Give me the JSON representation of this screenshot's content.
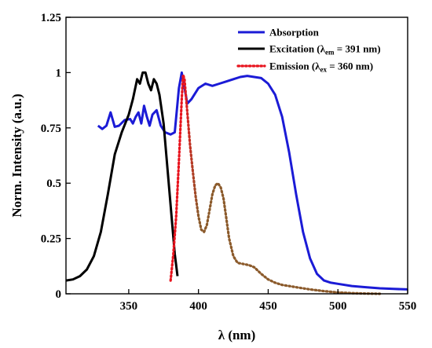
{
  "chart_data": {
    "type": "line",
    "xlabel": "λ (nm)",
    "ylabel": "Norm. Intensity (a.u.)",
    "xlim": [
      305,
      550
    ],
    "ylim": [
      0,
      1.25
    ],
    "x_ticks": [
      350,
      400,
      450,
      500,
      550
    ],
    "y_ticks": [
      0,
      0.25,
      0.5,
      0.75,
      1,
      1.25
    ],
    "x_tick_labels": [
      "350",
      "400",
      "450",
      "500",
      "550"
    ],
    "y_tick_labels": [
      "0",
      "0.25",
      "0.5",
      "0.75",
      "1",
      "1.25"
    ],
    "legend_position": "top-right",
    "grid": false,
    "series": [
      {
        "name": "Absorption",
        "name_base": "Absorption",
        "color": "#1b1bd6",
        "style": "solid",
        "points": [
          [
            328,
            0.76
          ],
          [
            331,
            0.745
          ],
          [
            334,
            0.76
          ],
          [
            337,
            0.82
          ],
          [
            340,
            0.755
          ],
          [
            343,
            0.76
          ],
          [
            347,
            0.785
          ],
          [
            351,
            0.79
          ],
          [
            353,
            0.77
          ],
          [
            355,
            0.8
          ],
          [
            357,
            0.82
          ],
          [
            359,
            0.77
          ],
          [
            361,
            0.85
          ],
          [
            363,
            0.8
          ],
          [
            365,
            0.76
          ],
          [
            367,
            0.81
          ],
          [
            370,
            0.83
          ],
          [
            373,
            0.76
          ],
          [
            376,
            0.73
          ],
          [
            380,
            0.72
          ],
          [
            383,
            0.73
          ],
          [
            386,
            0.93
          ],
          [
            388,
            1.0
          ],
          [
            390,
            0.93
          ],
          [
            392,
            0.86
          ],
          [
            395,
            0.88
          ],
          [
            400,
            0.93
          ],
          [
            405,
            0.95
          ],
          [
            410,
            0.94
          ],
          [
            415,
            0.95
          ],
          [
            420,
            0.96
          ],
          [
            425,
            0.97
          ],
          [
            430,
            0.98
          ],
          [
            435,
            0.985
          ],
          [
            440,
            0.98
          ],
          [
            445,
            0.975
          ],
          [
            450,
            0.95
          ],
          [
            455,
            0.9
          ],
          [
            460,
            0.8
          ],
          [
            465,
            0.64
          ],
          [
            470,
            0.45
          ],
          [
            475,
            0.28
          ],
          [
            480,
            0.16
          ],
          [
            485,
            0.09
          ],
          [
            490,
            0.06
          ],
          [
            495,
            0.05
          ],
          [
            500,
            0.045
          ],
          [
            510,
            0.035
          ],
          [
            520,
            0.03
          ],
          [
            530,
            0.025
          ],
          [
            540,
            0.022
          ],
          [
            550,
            0.02
          ]
        ]
      },
      {
        "name": "Excitation (λem = 391 nm)",
        "name_base": "Excitation (λ",
        "name_sub": "em",
        "name_tail": " = 391 nm)",
        "color": "#000000",
        "style": "solid",
        "points": [
          [
            305,
            0.06
          ],
          [
            310,
            0.065
          ],
          [
            315,
            0.08
          ],
          [
            320,
            0.11
          ],
          [
            325,
            0.17
          ],
          [
            330,
            0.28
          ],
          [
            335,
            0.45
          ],
          [
            340,
            0.63
          ],
          [
            345,
            0.73
          ],
          [
            350,
            0.81
          ],
          [
            353,
            0.88
          ],
          [
            356,
            0.97
          ],
          [
            358,
            0.95
          ],
          [
            360,
            1.0
          ],
          [
            362,
            1.0
          ],
          [
            364,
            0.95
          ],
          [
            366,
            0.92
          ],
          [
            368,
            0.97
          ],
          [
            370,
            0.95
          ],
          [
            372,
            0.9
          ],
          [
            375,
            0.77
          ],
          [
            378,
            0.55
          ],
          [
            381,
            0.33
          ],
          [
            383,
            0.18
          ],
          [
            385,
            0.08
          ]
        ]
      },
      {
        "name": "Emission (λex = 360 nm)",
        "name_base": "Emission (λ",
        "name_sub": "ex",
        "name_tail": " = 360 nm)",
        "color": "#e8141e",
        "color_tail": "#8b5a2b",
        "style": "dotted",
        "points": [
          [
            380,
            0.06
          ],
          [
            382,
            0.18
          ],
          [
            384,
            0.35
          ],
          [
            386,
            0.6
          ],
          [
            388,
            0.88
          ],
          [
            389,
            0.99
          ],
          [
            390,
            0.97
          ],
          [
            392,
            0.82
          ],
          [
            394,
            0.67
          ],
          [
            396,
            0.55
          ],
          [
            398,
            0.44
          ],
          [
            400,
            0.35
          ],
          [
            402,
            0.29
          ],
          [
            404,
            0.28
          ],
          [
            406,
            0.31
          ],
          [
            408,
            0.38
          ],
          [
            410,
            0.45
          ],
          [
            412,
            0.49
          ],
          [
            414,
            0.5
          ],
          [
            416,
            0.48
          ],
          [
            418,
            0.43
          ],
          [
            420,
            0.34
          ],
          [
            422,
            0.25
          ],
          [
            425,
            0.17
          ],
          [
            428,
            0.14
          ],
          [
            432,
            0.135
          ],
          [
            436,
            0.13
          ],
          [
            440,
            0.12
          ],
          [
            445,
            0.09
          ],
          [
            450,
            0.065
          ],
          [
            455,
            0.05
          ],
          [
            460,
            0.04
          ],
          [
            470,
            0.03
          ],
          [
            480,
            0.02
          ],
          [
            490,
            0.012
          ],
          [
            500,
            0.006
          ],
          [
            510,
            0.003
          ],
          [
            520,
            0.001
          ],
          [
            530,
            0
          ]
        ]
      }
    ]
  }
}
